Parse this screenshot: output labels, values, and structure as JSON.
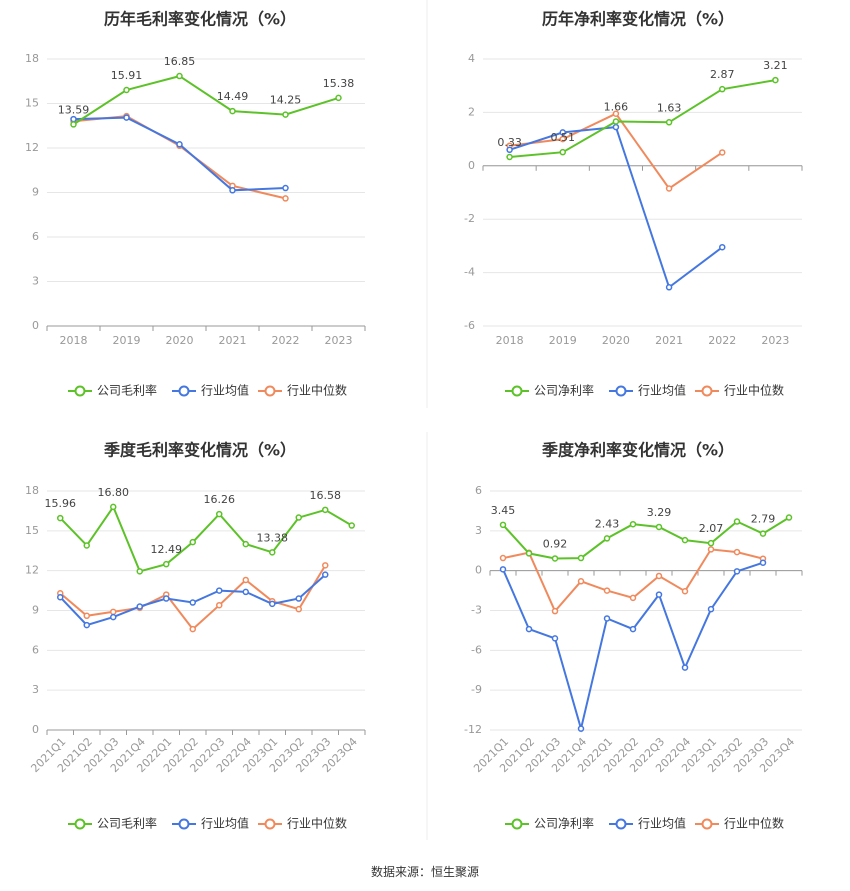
{
  "source": "数据来源：恒生聚源",
  "colors": {
    "company": "#5cc228",
    "avg": "#4577e0",
    "median": "#f08a5d"
  },
  "chart_data": [
    {
      "type": "line",
      "title": "历年毛利率变化情况（%）",
      "categories": [
        "2018",
        "2019",
        "2020",
        "2021",
        "2022",
        "2023"
      ],
      "ylim": [
        0,
        18
      ],
      "yticks": [
        "0",
        "3",
        "6",
        "9",
        "12",
        "15",
        "18"
      ],
      "grid": true,
      "legend": "bottom",
      "series": [
        {
          "name": "公司毛利率",
          "values": [
            13.59,
            15.91,
            16.85,
            14.49,
            14.25,
            15.38
          ],
          "labels": [
            "13.59",
            "15.91",
            "16.85",
            "14.49",
            "14.25",
            "15.38"
          ]
        },
        {
          "name": "行业均值",
          "values": [
            13.95,
            14.05,
            12.25,
            9.15,
            9.3,
            null
          ]
        },
        {
          "name": "行业中位数",
          "values": [
            13.8,
            14.15,
            12.15,
            9.45,
            8.6,
            null
          ]
        }
      ]
    },
    {
      "type": "line",
      "title": "历年净利率变化情况（%）",
      "categories": [
        "2018",
        "2019",
        "2020",
        "2021",
        "2022",
        "2023"
      ],
      "ylim": [
        -6,
        4
      ],
      "yticks": [
        "-6",
        "-4",
        "-2",
        "0",
        "2",
        "4"
      ],
      "grid": true,
      "legend": "bottom",
      "series": [
        {
          "name": "公司净利率",
          "values": [
            0.33,
            0.51,
            1.66,
            1.63,
            2.87,
            3.21
          ],
          "labels": [
            "0.33",
            "0.51",
            "1.66",
            "1.63",
            "2.87",
            "3.21"
          ]
        },
        {
          "name": "行业均值",
          "values": [
            0.6,
            1.25,
            1.45,
            -4.55,
            -3.05,
            null
          ]
        },
        {
          "name": "行业中位数",
          "values": [
            0.75,
            1.0,
            1.95,
            -0.85,
            0.5,
            null
          ]
        }
      ]
    },
    {
      "type": "line",
      "title": "季度毛利率变化情况（%）",
      "categories": [
        "2021Q1",
        "2021Q2",
        "2021Q3",
        "2021Q4",
        "2022Q1",
        "2022Q2",
        "2022Q3",
        "2022Q4",
        "2023Q1",
        "2023Q2",
        "2023Q3",
        "2023Q4"
      ],
      "ylim": [
        0,
        18
      ],
      "yticks": [
        "0",
        "3",
        "6",
        "9",
        "12",
        "15",
        "18"
      ],
      "grid": true,
      "legend": "bottom",
      "series": [
        {
          "name": "公司毛利率",
          "values": [
            15.96,
            13.9,
            16.8,
            11.95,
            12.49,
            14.15,
            16.26,
            14.0,
            13.38,
            16.0,
            16.58,
            15.4
          ],
          "labels": [
            "15.96",
            "",
            "16.80",
            "",
            "12.49",
            "",
            "16.26",
            "",
            "13.38",
            "",
            "16.58",
            ""
          ]
        },
        {
          "name": "行业均值",
          "values": [
            10.0,
            7.9,
            8.5,
            9.3,
            9.9,
            9.6,
            10.5,
            10.4,
            9.5,
            9.9,
            11.7,
            null
          ]
        },
        {
          "name": "行业中位数",
          "values": [
            10.3,
            8.6,
            8.9,
            9.2,
            10.2,
            7.6,
            9.4,
            11.3,
            9.7,
            9.1,
            12.4,
            null
          ]
        }
      ]
    },
    {
      "type": "line",
      "title": "季度净利率变化情况（%）",
      "categories": [
        "2021Q1",
        "2021Q2",
        "2021Q3",
        "2021Q4",
        "2022Q1",
        "2022Q2",
        "2022Q3",
        "2022Q4",
        "2023Q1",
        "2023Q2",
        "2023Q3",
        "2023Q4"
      ],
      "ylim": [
        -12,
        6
      ],
      "yticks": [
        "-12",
        "-9",
        "-6",
        "-3",
        "0",
        "3",
        "6"
      ],
      "grid": true,
      "legend": "bottom",
      "series": [
        {
          "name": "公司净利率",
          "values": [
            3.45,
            1.3,
            0.92,
            0.95,
            2.43,
            3.5,
            3.29,
            2.3,
            2.07,
            3.7,
            2.79,
            4.0
          ],
          "labels": [
            "3.45",
            "",
            "0.92",
            "",
            "2.43",
            "",
            "3.29",
            "",
            "2.07",
            "",
            "2.79",
            ""
          ]
        },
        {
          "name": "行业均值",
          "values": [
            0.1,
            -4.4,
            -5.1,
            -11.9,
            -3.6,
            -4.4,
            -1.8,
            -7.3,
            -2.9,
            -0.05,
            0.6,
            null
          ]
        },
        {
          "name": "行业中位数",
          "values": [
            0.95,
            1.35,
            -3.05,
            -0.8,
            -1.5,
            -2.05,
            -0.4,
            -1.55,
            1.6,
            1.4,
            0.9,
            null
          ]
        }
      ]
    }
  ]
}
